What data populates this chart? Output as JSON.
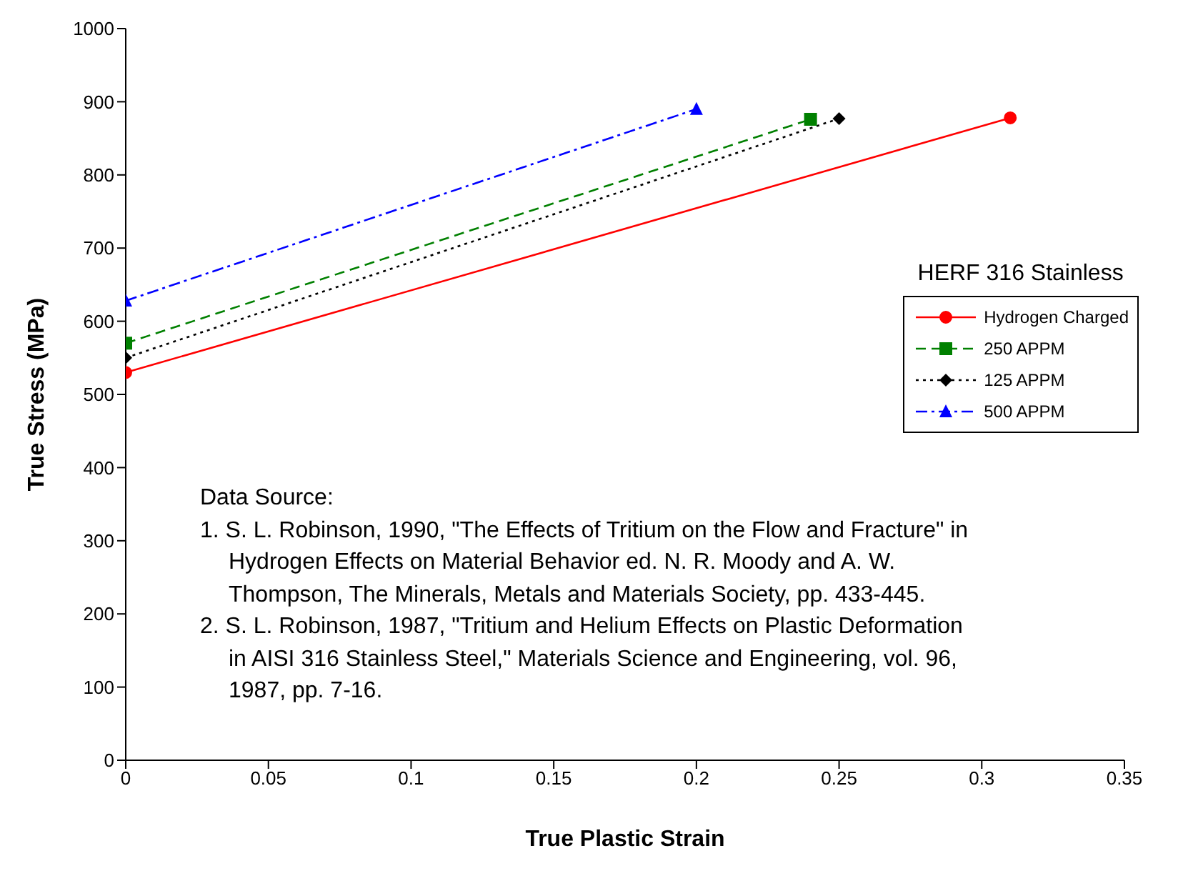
{
  "chart_data": {
    "type": "line",
    "xlabel": "True Plastic Strain",
    "ylabel": "True Stress (MPa)",
    "legend_title": "HERF 316 Stainless",
    "legend": "right",
    "xlim": [
      0,
      0.35
    ],
    "xticks": [
      0,
      0.05,
      0.1,
      0.15,
      0.2,
      0.25,
      0.3,
      0.35
    ],
    "ylim": [
      0,
      1000
    ],
    "yticks": [
      0,
      100,
      200,
      300,
      400,
      500,
      600,
      700,
      800,
      900,
      1000
    ],
    "grid": false,
    "series": [
      {
        "name": "Hydrogen Charged",
        "color": "#ff0000",
        "x": [
          0,
          0.31
        ],
        "values": [
          530,
          878
        ],
        "marker": "circle",
        "line_style": "solid"
      },
      {
        "name": "250 APPM",
        "color": "#008000",
        "x": [
          0,
          0.24
        ],
        "values": [
          570,
          876
        ],
        "marker": "square",
        "line_style": "dashed"
      },
      {
        "name": "125 APPM",
        "color": "#000000",
        "x": [
          0,
          0.25
        ],
        "values": [
          550,
          877
        ],
        "marker": "diamond",
        "line_style": "dotted"
      },
      {
        "name": "500 APPM",
        "color": "#0000ff",
        "x": [
          0,
          0.2
        ],
        "values": [
          628,
          890
        ],
        "marker": "triangle",
        "line_style": "dashdot"
      }
    ],
    "annotations": [
      "Data Source:",
      "1. S. L. Robinson, 1990, \"The Effects of Tritium on the Flow and Fracture\" in Hydrogen Effects on Material Behavior ed. N. R. Moody and A. W. Thompson, The Minerals, Metals and Materials Society, pp. 433-445.",
      "2. S. L. Robinson, 1987, \"Tritium and Helium Effects on Plastic Deformation in AISI 316 Stainless Steel,\" Materials Science and Engineering, vol. 96, 1987, pp. 7-16."
    ]
  }
}
